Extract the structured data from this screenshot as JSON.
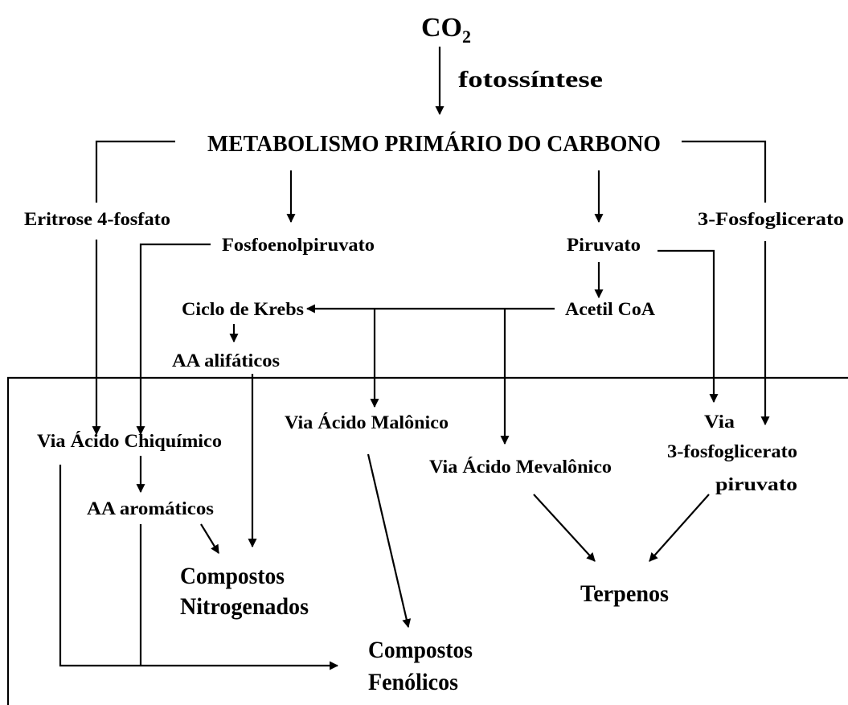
{
  "co2": {
    "base": "CO",
    "sub": "2"
  },
  "nodes": {
    "fotossintese": "fotossíntese",
    "metabolismo": "METABOLISMO PRIMÁRIO DO CARBONO",
    "eritrose": "Eritrose 4-fosfato",
    "fosfoglicerato": "3-Fosfoglicerato",
    "fosfoenolpiruvato": "Fosfoenolpiruvato",
    "piruvato": "Piruvato",
    "krebs": "Ciclo de Krebs",
    "acetil": "Acetil CoA",
    "alifaticos": "AA alifáticos",
    "chiquimico": "Via Ácido Chiquímico",
    "malonico": "Via Ácido Malônico",
    "mevalonico": "Via Ácido Mevalônico",
    "via_fosfo": [
      "Via",
      "3-fosfoglicerato",
      "piruvato"
    ],
    "aromaticos": "AA aromáticos",
    "nitrogenados": [
      "Compostos",
      "Nitrogenados"
    ],
    "terpenos": "Terpenos",
    "fenolicos": [
      "Compostos",
      "Fenólicos"
    ]
  }
}
